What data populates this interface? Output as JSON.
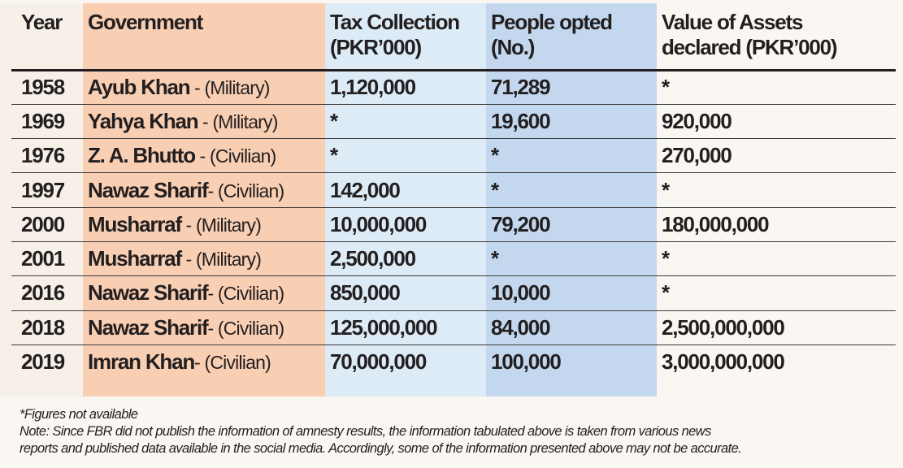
{
  "table": {
    "headers": [
      {
        "line1": "Year",
        "line2": ""
      },
      {
        "line1": "Government",
        "line2": ""
      },
      {
        "line1": "Tax Collection",
        "line2": "(PKR’000)"
      },
      {
        "line1": "People opted",
        "line2": "(No.)"
      },
      {
        "line1": "Value of Assets",
        "line2": "declared (PKR’000)"
      }
    ],
    "rows": [
      {
        "year": "1958",
        "leader": "Ayub Khan",
        "sep": " - ",
        "type": "(Military)",
        "tax": "1,120,000",
        "people": "71,289",
        "assets": "*"
      },
      {
        "year": "1969",
        "leader": "Yahya Khan",
        "sep": " - ",
        "type": "(Military)",
        "tax": "*",
        "people": "19,600",
        "assets": "920,000"
      },
      {
        "year": "1976",
        "leader": "Z. A. Bhutto",
        "sep": " - ",
        "type": "(Civilian)",
        "tax": "*",
        "people": "*",
        "assets": "270,000"
      },
      {
        "year": "1997",
        "leader": "Nawaz Sharif",
        "sep": "- ",
        "type": "(Civilian)",
        "tax": "142,000",
        "people": "*",
        "assets": "*"
      },
      {
        "year": "2000",
        "leader": "Musharraf",
        "sep": " - ",
        "type": "(Military)",
        "tax": "10,000,000",
        "people": "79,200",
        "assets": "180,000,000"
      },
      {
        "year": "2001",
        "leader": "Musharraf",
        "sep": " - ",
        "type": "(Military)",
        "tax": "2,500,000",
        "people": "*",
        "assets": "*"
      },
      {
        "year": "2016",
        "leader": "Nawaz Sharif",
        "sep": "- ",
        "type": "(Civilian)",
        "tax": "850,000",
        "people": "10,000",
        "assets": "*"
      },
      {
        "year": "2018",
        "leader": "Nawaz Sharif",
        "sep": "- ",
        "type": "(Civilian)",
        "tax": "125,000,000",
        "people": "84,000",
        "assets": "2,500,000,000"
      },
      {
        "year": "2019",
        "leader": "Imran Khan",
        "sep": "- ",
        "type": "(Civilian)",
        "tax": "70,000,000",
        "people": "100,000",
        "assets": "3,000,000,000"
      }
    ]
  },
  "notes": {
    "footnote": "*Figures not available",
    "note_line1": "Note: Since FBR did not publish the information of amnesty results, the information tabulated above is taken from various news",
    "note_line2": "reports and published data available in the social media. Accordingly, some of the information presented above may not be accurate."
  },
  "colors": {
    "year_band": "#f7f0e8",
    "government_band": "#f9cfb4",
    "tax_band": "#ddebf6",
    "people_band": "#c3d8ee",
    "background": "#faf6f1"
  }
}
